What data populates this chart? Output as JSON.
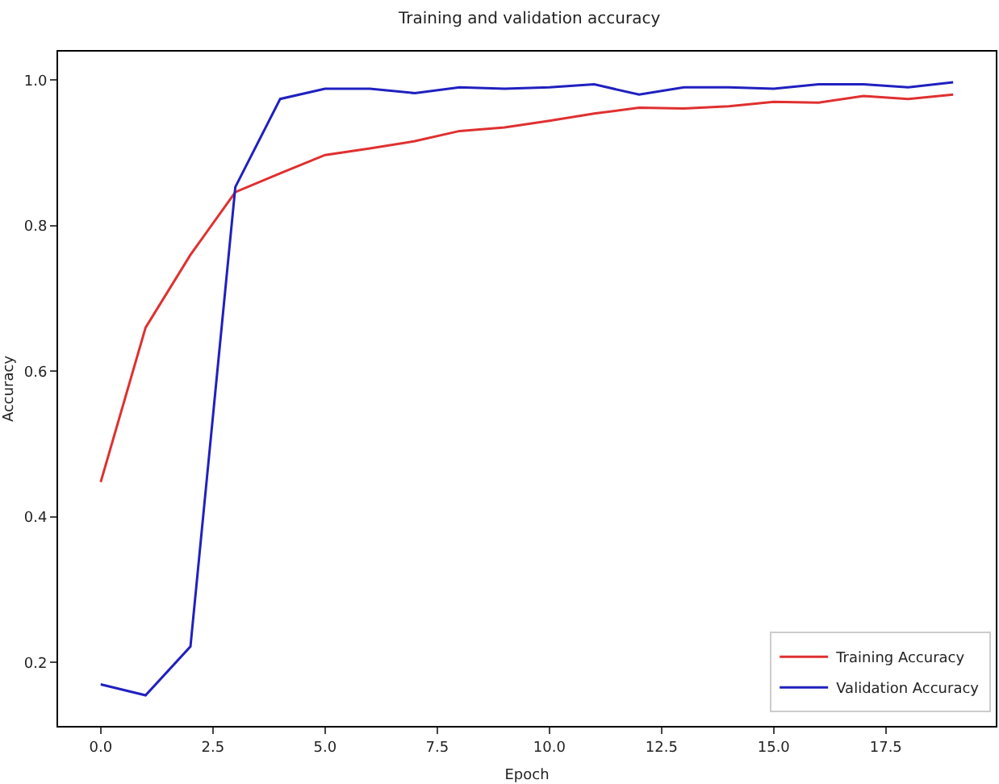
{
  "chart_data": {
    "type": "line",
    "title": "Training and validation accuracy",
    "xlabel": "Epoch",
    "ylabel": "Accuracy",
    "x": [
      0,
      1,
      2,
      3,
      4,
      5,
      6,
      7,
      8,
      9,
      10,
      11,
      12,
      13,
      14,
      15,
      16,
      17,
      18,
      19
    ],
    "series": [
      {
        "name": "Training Accuracy",
        "color": "#e03030",
        "values": [
          0.448,
          0.66,
          0.76,
          0.846,
          0.872,
          0.897,
          0.906,
          0.916,
          0.93,
          0.935,
          0.944,
          0.954,
          0.962,
          0.961,
          0.964,
          0.97,
          0.969,
          0.978,
          0.974,
          0.98
        ]
      },
      {
        "name": "Validation Accuracy",
        "color": "#2020c0",
        "values": [
          0.17,
          0.155,
          0.222,
          0.853,
          0.974,
          0.988,
          0.988,
          0.982,
          0.99,
          0.988,
          0.99,
          0.994,
          0.98,
          0.99,
          0.99,
          0.988,
          0.994,
          0.994,
          0.99,
          0.997
        ]
      }
    ],
    "xlim": [
      -0.95,
      19.95
    ],
    "xticks": [
      {
        "value": 0,
        "label": "0.0"
      },
      {
        "value": 2.5,
        "label": "2.5"
      },
      {
        "value": 5,
        "label": "5.0"
      },
      {
        "value": 7.5,
        "label": "7.5"
      },
      {
        "value": 10,
        "label": "10.0"
      },
      {
        "value": 12.5,
        "label": "12.5"
      },
      {
        "value": 15,
        "label": "15.0"
      },
      {
        "value": 17.5,
        "label": "17.5"
      }
    ],
    "ylim": [
      0.113,
      1.039
    ],
    "yticks": [
      {
        "value": 0.2,
        "label": "0.2"
      },
      {
        "value": 0.4,
        "label": "0.4"
      },
      {
        "value": 0.6,
        "label": "0.6"
      },
      {
        "value": 0.8,
        "label": "0.8"
      },
      {
        "value": 1,
        "label": "1.0"
      }
    ],
    "legend": "bottom right",
    "grid": false,
    "marker": "none",
    "line_style": "solid"
  }
}
